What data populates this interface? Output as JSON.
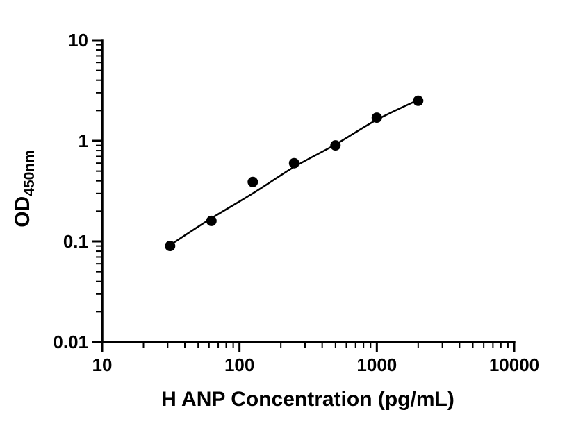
{
  "chart_data": {
    "type": "scatter",
    "title": "",
    "xlabel": "H ANP Concentration (pg/mL)",
    "ylabel_main": "OD",
    "ylabel_sub": "450nm",
    "x_scale": "log",
    "y_scale": "log",
    "x_range": [
      10,
      10000
    ],
    "y_range": [
      0.01,
      10
    ],
    "grid": false,
    "legend": false,
    "x_ticks": [
      {
        "value": 10,
        "label": "10"
      },
      {
        "value": 100,
        "label": "100"
      },
      {
        "value": 1000,
        "label": "1000"
      },
      {
        "value": 10000,
        "label": "10000"
      }
    ],
    "y_ticks": [
      {
        "value": 0.01,
        "label": "0.01"
      },
      {
        "value": 0.1,
        "label": "0.1"
      },
      {
        "value": 1,
        "label": "1"
      },
      {
        "value": 10,
        "label": "10"
      }
    ],
    "points": {
      "x": [
        31.25,
        62.5,
        125,
        250,
        500,
        1000,
        2000
      ],
      "y": [
        0.09,
        0.16,
        0.39,
        0.6,
        0.9,
        1.7,
        2.5
      ]
    },
    "fit_curve": {
      "x": [
        31.25,
        62.5,
        125,
        250,
        500,
        1000,
        2000
      ],
      "y": [
        0.092,
        0.17,
        0.3,
        0.55,
        0.92,
        1.62,
        2.55
      ]
    },
    "marker_color": "#000000",
    "line_color": "#000000",
    "axis_color": "#000000"
  }
}
